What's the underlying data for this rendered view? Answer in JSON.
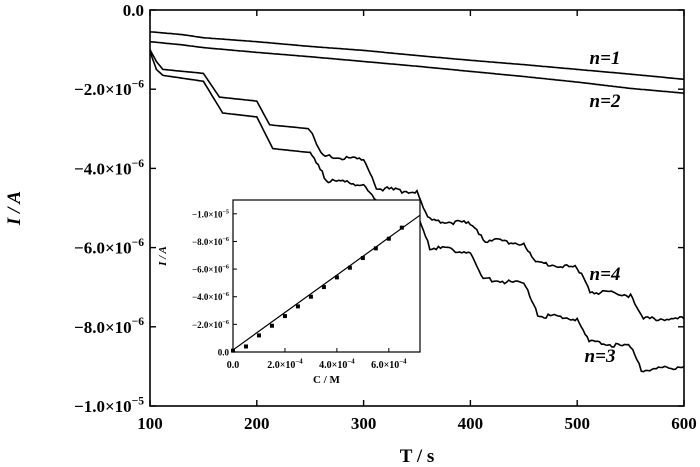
{
  "chart_data": [
    {
      "type": "line",
      "title": "",
      "xlabel": "T / s",
      "ylabel": "I / A",
      "xlim": [
        100,
        600
      ],
      "ylim": [
        -1e-05,
        0.0
      ],
      "x_ticks": [
        100,
        200,
        300,
        400,
        500,
        600
      ],
      "x_tick_labels": [
        "100",
        "200",
        "300",
        "400",
        "500",
        "600"
      ],
      "y_ticks": [
        0.0,
        -2e-06,
        -4e-06,
        -6e-06,
        -8e-06,
        -1e-05
      ],
      "y_tick_labels": [
        {
          "mant": "0.0",
          "exp": ""
        },
        {
          "mant": "−2.0×10",
          "exp": "−6"
        },
        {
          "mant": "−4.0×10",
          "exp": "−6"
        },
        {
          "mant": "−6.0×10",
          "exp": "−6"
        },
        {
          "mant": "−8.0×10",
          "exp": "−6"
        },
        {
          "mant": "−1.0×10",
          "exp": "−5"
        }
      ],
      "grid": false,
      "series": [
        {
          "name": "n=1",
          "x": [
            100,
            130,
            150,
            200,
            250,
            300,
            350,
            400,
            450,
            500,
            550,
            600
          ],
          "y": [
            -5.5e-07,
            -6.2e-07,
            -7e-07,
            -8e-07,
            -9.2e-07,
            -1.02e-06,
            -1.15e-06,
            -1.27e-06,
            -1.38e-06,
            -1.5e-06,
            -1.62e-06,
            -1.75e-06
          ]
        },
        {
          "name": "n=2",
          "x": [
            100,
            130,
            150,
            200,
            250,
            300,
            350,
            400,
            450,
            500,
            550,
            600
          ],
          "y": [
            -8e-07,
            -8.8e-07,
            -9.5e-07,
            -1.07e-06,
            -1.18e-06,
            -1.3e-06,
            -1.42e-06,
            -1.55e-06,
            -1.68e-06,
            -1.82e-06,
            -1.98e-06,
            -2.1e-06
          ]
        },
        {
          "name": "n=3",
          "x": [
            100,
            106,
            112,
            150,
            168,
            200,
            215,
            250,
            265,
            300,
            318,
            350,
            362,
            400,
            412,
            450,
            463,
            500,
            513,
            550,
            560,
            600
          ],
          "y": [
            -1.05e-06,
            -1.5e-06,
            -1.65e-06,
            -1.8e-06,
            -2.6e-06,
            -2.7e-06,
            -3.5e-06,
            -3.6e-06,
            -4.3e-06,
            -4.4e-06,
            -5e-06,
            -5.2e-06,
            -6e-06,
            -6.1e-06,
            -6.8e-06,
            -6.9e-06,
            -7.7e-06,
            -7.8e-06,
            -8.4e-06,
            -8.5e-06,
            -9.1e-06,
            -9e-06
          ]
        },
        {
          "name": "n=4",
          "x": [
            100,
            106,
            112,
            150,
            165,
            200,
            212,
            250,
            262,
            300,
            312,
            350,
            362,
            400,
            412,
            450,
            463,
            500,
            512,
            550,
            562,
            600
          ],
          "y": [
            -1e-06,
            -1.3e-06,
            -1.5e-06,
            -1.6e-06,
            -2.2e-06,
            -2.3e-06,
            -2.9e-06,
            -3e-06,
            -3.7e-06,
            -3.8e-06,
            -4.5e-06,
            -4.6e-06,
            -5.3e-06,
            -5.4e-06,
            -5.8e-06,
            -5.9e-06,
            -6.4e-06,
            -6.5e-06,
            -7.1e-06,
            -7.2e-06,
            -7.8e-06,
            -7.8e-06
          ]
        }
      ],
      "annotations": [
        {
          "text": "n=1",
          "series": "n=1"
        },
        {
          "text": "n=2",
          "series": "n=2"
        },
        {
          "text": "n=4",
          "series": "n=4"
        },
        {
          "text": "n=3",
          "series": "n=3"
        }
      ]
    },
    {
      "type": "scatter",
      "title": "",
      "xlabel": "C / M",
      "ylabel": "I / A",
      "xlim": [
        0,
        0.00072
      ],
      "ylim": [
        0,
        -1.1e-05
      ],
      "x_ticks": [
        0,
        0.0002,
        0.0004,
        0.0006
      ],
      "x_tick_labels": [
        {
          "mant": "0.0",
          "exp": ""
        },
        {
          "mant": "2.0×10",
          "exp": "−4"
        },
        {
          "mant": "4.0×10",
          "exp": "−4"
        },
        {
          "mant": "6.0×10",
          "exp": "−4"
        }
      ],
      "y_ticks": [
        0,
        -2e-06,
        -4e-06,
        -6e-06,
        -8e-06,
        -1e-05
      ],
      "y_tick_labels": [
        {
          "mant": "0.0",
          "exp": ""
        },
        {
          "mant": "−2.0×10",
          "exp": "−6"
        },
        {
          "mant": "−4.0×10",
          "exp": "−6"
        },
        {
          "mant": "−6.0×10",
          "exp": "−6"
        },
        {
          "mant": "−8.0×10",
          "exp": "−6"
        },
        {
          "mant": "−1.0×10",
          "exp": "−5"
        }
      ],
      "grid": false,
      "series": [
        {
          "name": "",
          "x": [
            0,
            5e-05,
            0.0001,
            0.00015,
            0.0002,
            0.00025,
            0.0003,
            0.00035,
            0.0004,
            0.00045,
            0.0005,
            0.00055,
            0.0006,
            0.00065
          ],
          "y": [
            -1e-07,
            -4e-07,
            -1.2e-06,
            -1.9e-06,
            -2.6e-06,
            -3.3e-06,
            -4e-06,
            -4.7e-06,
            -5.4e-06,
            -6.1e-06,
            -6.8e-06,
            -7.5e-06,
            -8.2e-06,
            -9e-06
          ]
        }
      ],
      "fit_line": {
        "x": [
          0,
          0.00072
        ],
        "y": [
          -1.5e-07,
          -9.9e-06
        ]
      }
    }
  ]
}
